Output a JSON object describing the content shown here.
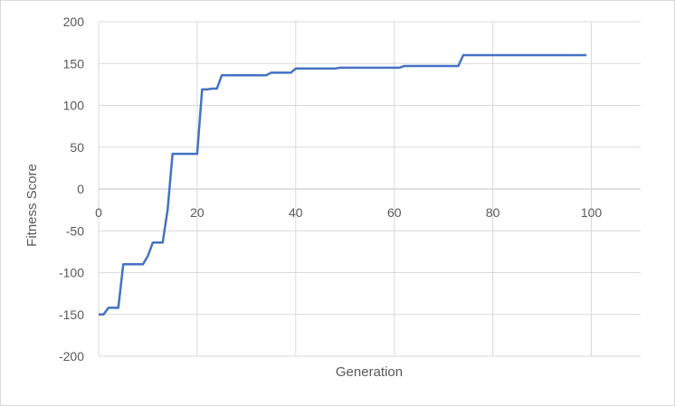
{
  "chart_data": {
    "type": "line",
    "title": "",
    "xlabel": "Generation",
    "ylabel": "Fitness Score",
    "xlim": [
      0,
      110
    ],
    "ylim": [
      -200,
      200
    ],
    "xticks": [
      "0",
      "20",
      "40",
      "60",
      "80",
      "100"
    ],
    "yticks": [
      "200",
      "150",
      "100",
      "50",
      "0",
      "-50",
      "-100",
      "-150",
      "-200"
    ],
    "grid": true,
    "legend": "none",
    "line_color": "#4472C4",
    "series": [
      {
        "x": [
          0,
          1,
          2,
          3,
          4,
          5,
          6,
          7,
          8,
          9,
          10,
          11,
          12,
          13,
          14,
          15,
          16,
          17,
          18,
          19,
          20,
          21,
          22,
          23,
          24,
          25,
          26,
          27,
          28,
          29,
          30,
          31,
          32,
          33,
          34,
          35,
          36,
          37,
          38,
          39,
          40,
          45,
          48,
          49,
          55,
          60,
          61,
          62,
          65,
          70,
          73,
          74,
          80,
          90,
          99
        ],
        "y": [
          -150,
          -150,
          -142,
          -142,
          -142,
          -90,
          -90,
          -90,
          -90,
          -90,
          -80,
          -64,
          -64,
          -64,
          -25,
          42,
          42,
          42,
          42,
          42,
          42,
          119,
          119,
          120,
          120,
          136,
          136,
          136,
          136,
          136,
          136,
          136,
          136,
          136,
          136,
          139,
          139,
          139,
          139,
          139,
          144,
          144,
          144,
          145,
          145,
          145,
          145,
          147,
          147,
          147,
          147,
          160,
          160,
          160,
          160
        ]
      }
    ]
  }
}
